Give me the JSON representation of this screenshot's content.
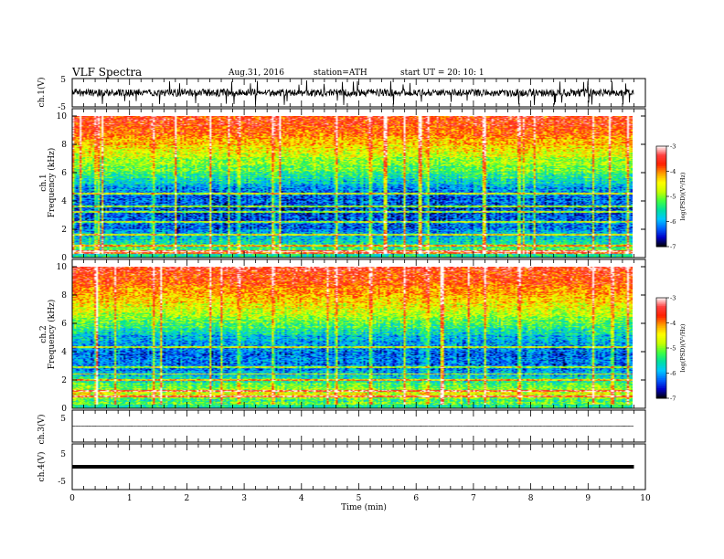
{
  "header": {
    "title": "VLF  Spectra",
    "date": "Aug.31, 2016",
    "station": "station=ATH",
    "start": "start  UT  =   20: 10: 1"
  },
  "colors": {
    "background": "#ffffff",
    "axis": "#000000",
    "colormap": [
      "#000000",
      "#0000c8",
      "#0064ff",
      "#00c8ff",
      "#00e0a0",
      "#40ff40",
      "#c8ff00",
      "#ffff00",
      "#ffa000",
      "#ff2000",
      "#ff4040",
      "#ffffff"
    ]
  },
  "chart_data": [
    {
      "id": "ch1-waveform",
      "type": "line",
      "ylabel": "ch.1(V)",
      "xlim": [
        0,
        10
      ],
      "ylim": [
        -5,
        5
      ],
      "yticks": [
        "5",
        "-5"
      ],
      "data_extent_min": 9.8,
      "description_values": "broadband noisy waveform, typical amplitude about ±2 V with impulsive spikes near ±4 V"
    },
    {
      "id": "ch1-spectrogram",
      "type": "heatmap",
      "ylabel": "ch.1",
      "ylabel2": "Frequency  (kHz)",
      "xlim": [
        0,
        10
      ],
      "ylim": [
        0,
        10
      ],
      "yticks": [
        "0",
        "2",
        "4",
        "6",
        "8",
        "10"
      ],
      "data_extent_min": 9.8,
      "colorbar": {
        "label": "log(PSD)(V²/Hz)",
        "range": [
          -7,
          -3
        ],
        "ticks": [
          "-3",
          "-4",
          "-5",
          "-6",
          "-7"
        ]
      },
      "profile_by_freq_khz": [
        {
          "f": 0.25,
          "logpsd": -3.3
        },
        {
          "f": 0.5,
          "logpsd": -5.2
        },
        {
          "f": 1,
          "logpsd": -5.6
        },
        {
          "f": 2,
          "logpsd": -6.2
        },
        {
          "f": 3,
          "logpsd": -6.4
        },
        {
          "f": 4,
          "logpsd": -6.3
        },
        {
          "f": 5,
          "logpsd": -6.0
        },
        {
          "f": 6,
          "logpsd": -5.3
        },
        {
          "f": 7,
          "logpsd": -4.8
        },
        {
          "f": 8,
          "logpsd": -4.3
        },
        {
          "f": 9,
          "logpsd": -3.8
        },
        {
          "f": 10,
          "logpsd": -3.6
        }
      ],
      "narrowband_lines_khz": [
        0.4,
        0.8,
        1.6,
        2.5,
        3.2,
        3.6,
        4.5
      ],
      "sferic_times_min": [
        0.4,
        1.4,
        2.4,
        2.9,
        3.5,
        4.6,
        5.2,
        5.8,
        6.2,
        7.2,
        7.8,
        9.1,
        9.7
      ]
    },
    {
      "id": "ch2-spectrogram",
      "type": "heatmap",
      "ylabel": "ch.2",
      "ylabel2": "Frequency  (kHz)",
      "xlim": [
        0,
        10
      ],
      "ylim": [
        0,
        10
      ],
      "yticks": [
        "0",
        "2",
        "4",
        "6",
        "8",
        "10"
      ],
      "data_extent_min": 9.8,
      "colorbar": {
        "label": "log(PSD)(V²/Hz)",
        "range": [
          -7,
          -3
        ],
        "ticks": [
          "-3",
          "-4",
          "-5",
          "-6",
          "-7"
        ]
      },
      "profile_by_freq_khz": [
        {
          "f": 0.25,
          "logpsd": -5.0
        },
        {
          "f": 0.5,
          "logpsd": -5.4
        },
        {
          "f": 1,
          "logpsd": -4.6
        },
        {
          "f": 2,
          "logpsd": -5.6
        },
        {
          "f": 3,
          "logpsd": -6.3
        },
        {
          "f": 4,
          "logpsd": -6.2
        },
        {
          "f": 5,
          "logpsd": -5.9
        },
        {
          "f": 6,
          "logpsd": -5.2
        },
        {
          "f": 7,
          "logpsd": -4.7
        },
        {
          "f": 8,
          "logpsd": -4.2
        },
        {
          "f": 9,
          "logpsd": -3.8
        },
        {
          "f": 10,
          "logpsd": -3.6
        }
      ],
      "narrowband_lines_khz": [
        0.8,
        1.2,
        2.0,
        2.4,
        2.9,
        4.3
      ],
      "sferic_times_min": [
        0.4,
        1.4,
        2.4,
        2.9,
        3.5,
        4.6,
        5.2,
        5.8,
        6.2,
        7.2,
        7.8,
        9.1,
        9.7
      ]
    },
    {
      "id": "ch3-waveform",
      "type": "line",
      "ylabel": "ch.3(V)",
      "xlim": [
        0,
        10
      ],
      "ylim": [
        -5,
        5
      ],
      "yticks": [
        "5"
      ],
      "data_extent_min": 9.8,
      "description_values": "flat trace near 0 V"
    },
    {
      "id": "ch4-waveform",
      "type": "line",
      "ylabel": "ch.4(V)",
      "xlim": [
        0,
        10
      ],
      "ylim": [
        -5,
        5
      ],
      "yticks": [
        "5",
        "-5"
      ],
      "data_extent_min": 9.8,
      "description_values": "thick flat trace near 0 V"
    }
  ],
  "xaxis": {
    "label": "Time  (min)",
    "ticks": [
      "0",
      "1",
      "2",
      "3",
      "4",
      "5",
      "6",
      "7",
      "8",
      "9",
      "10"
    ]
  }
}
